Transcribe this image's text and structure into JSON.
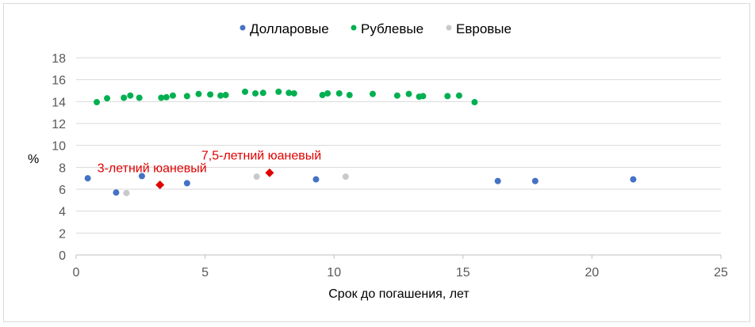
{
  "chart_data": {
    "type": "scatter",
    "xlabel": "Срок до погашения, лет",
    "ylabel": "%",
    "xlim": [
      0,
      25
    ],
    "ylim": [
      0,
      18
    ],
    "x_ticks": [
      0,
      5,
      10,
      15,
      20,
      25
    ],
    "y_ticks": [
      0,
      2,
      4,
      6,
      8,
      10,
      12,
      14,
      16,
      18
    ],
    "grid": "horizontal",
    "legend": "top-center",
    "series": [
      {
        "name": "Долларовые",
        "color": "#4472c4",
        "points": [
          [
            0.45,
            7.0
          ],
          [
            1.55,
            5.7
          ],
          [
            2.55,
            7.2
          ],
          [
            4.3,
            6.55
          ],
          [
            9.3,
            6.9
          ],
          [
            16.35,
            6.75
          ],
          [
            17.8,
            6.75
          ],
          [
            21.6,
            6.9
          ]
        ]
      },
      {
        "name": "Рублевые",
        "color": "#00b050",
        "points": [
          [
            0.8,
            13.95
          ],
          [
            1.2,
            14.3
          ],
          [
            1.85,
            14.35
          ],
          [
            2.1,
            14.55
          ],
          [
            2.45,
            14.35
          ],
          [
            3.3,
            14.35
          ],
          [
            3.5,
            14.4
          ],
          [
            3.75,
            14.55
          ],
          [
            4.3,
            14.5
          ],
          [
            4.75,
            14.7
          ],
          [
            5.2,
            14.65
          ],
          [
            5.6,
            14.55
          ],
          [
            5.8,
            14.6
          ],
          [
            6.55,
            14.9
          ],
          [
            6.95,
            14.75
          ],
          [
            7.25,
            14.8
          ],
          [
            7.85,
            14.9
          ],
          [
            8.25,
            14.8
          ],
          [
            8.45,
            14.75
          ],
          [
            9.55,
            14.6
          ],
          [
            9.75,
            14.75
          ],
          [
            10.2,
            14.75
          ],
          [
            10.6,
            14.6
          ],
          [
            11.5,
            14.7
          ],
          [
            12.45,
            14.55
          ],
          [
            12.9,
            14.7
          ],
          [
            13.3,
            14.45
          ],
          [
            13.45,
            14.5
          ],
          [
            14.4,
            14.5
          ],
          [
            14.85,
            14.55
          ],
          [
            15.45,
            13.95
          ]
        ]
      },
      {
        "name": "Евровые",
        "color": "#c9c9c9",
        "points": [
          [
            1.95,
            5.65
          ],
          [
            7.0,
            7.15
          ],
          [
            10.45,
            7.15
          ]
        ]
      }
    ],
    "highlights": [
      {
        "label": "3-летний юаневый",
        "x": 3.25,
        "y": 6.4,
        "color": "#e00000"
      },
      {
        "label": "7,5-летний юаневый",
        "x": 7.5,
        "y": 7.5,
        "color": "#e00000"
      }
    ]
  }
}
